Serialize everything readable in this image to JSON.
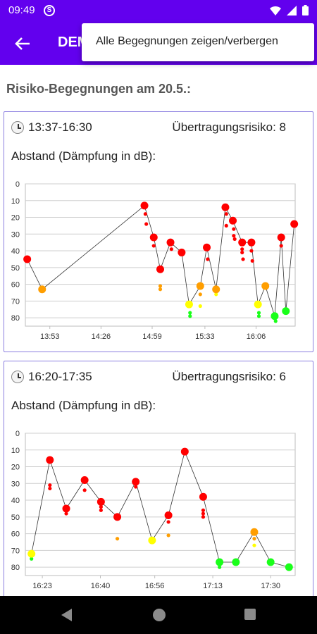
{
  "status": {
    "time": "09:49",
    "app_icon": "signal-app-icon",
    "icons": [
      "wifi-icon",
      "signal-icon",
      "battery-icon"
    ]
  },
  "app_bar": {
    "title": "DEM",
    "back_icon": "arrow-back-icon"
  },
  "menu": {
    "items": [
      {
        "label": "Alle Begegnungen zeigen/verbergen"
      }
    ]
  },
  "heading": "Risiko-Begegnungen am 20.5.:",
  "colors": {
    "primary": "#6200ee",
    "red": "#ff0000",
    "orange": "#ff9e00",
    "yellow": "#ffff00",
    "green": "#1aff1a",
    "card_border": "#8c7fe0"
  },
  "cards": [
    {
      "time_range": "13:37-16:30",
      "risk_label": "Übertragungsrisiko: 8",
      "sublabel": "Abstand (Dämpfung in dB):"
    },
    {
      "time_range": "16:20-17:35",
      "risk_label": "Übertragungsrisiko: 6",
      "sublabel": "Abstand (Dämpfung in dB):"
    }
  ],
  "chart_data": [
    {
      "type": "scatter",
      "ylabel": "",
      "ylim": [
        0,
        85
      ],
      "yticks": [
        0,
        10,
        20,
        30,
        40,
        50,
        60,
        70,
        80
      ],
      "xlim": [
        13.62,
        16.52
      ],
      "xticks": [
        {
          "value": 13.883,
          "label": "13:53"
        },
        {
          "value": 14.433,
          "label": "14:26"
        },
        {
          "value": 14.983,
          "label": "14:59"
        },
        {
          "value": 15.55,
          "label": "15:33"
        },
        {
          "value": 16.1,
          "label": "16:06"
        }
      ],
      "grid": true,
      "line": [
        {
          "x": 13.64,
          "y": 45
        },
        {
          "x": 13.8,
          "y": 63
        },
        {
          "x": 14.9,
          "y": 13
        },
        {
          "x": 15.0,
          "y": 32
        },
        {
          "x": 15.07,
          "y": 51
        },
        {
          "x": 15.18,
          "y": 35
        },
        {
          "x": 15.3,
          "y": 41
        },
        {
          "x": 15.38,
          "y": 72
        },
        {
          "x": 15.5,
          "y": 61
        },
        {
          "x": 15.57,
          "y": 38
        },
        {
          "x": 15.67,
          "y": 63
        },
        {
          "x": 15.77,
          "y": 14
        },
        {
          "x": 15.85,
          "y": 22
        },
        {
          "x": 15.95,
          "y": 35
        },
        {
          "x": 16.05,
          "y": 35
        },
        {
          "x": 16.12,
          "y": 72
        },
        {
          "x": 16.2,
          "y": 61
        },
        {
          "x": 16.3,
          "y": 79
        },
        {
          "x": 16.37,
          "y": 32
        },
        {
          "x": 16.42,
          "y": 76
        },
        {
          "x": 16.51,
          "y": 24
        }
      ],
      "points": [
        {
          "x": 13.64,
          "y": 45,
          "risk": "red",
          "size": "large"
        },
        {
          "x": 13.8,
          "y": 63,
          "risk": "orange",
          "size": "large"
        },
        {
          "x": 14.9,
          "y": 13,
          "risk": "red",
          "size": "large"
        },
        {
          "x": 14.91,
          "y": 18,
          "risk": "red",
          "size": "small"
        },
        {
          "x": 14.92,
          "y": 24,
          "risk": "red",
          "size": "small"
        },
        {
          "x": 15.0,
          "y": 32,
          "risk": "red",
          "size": "large"
        },
        {
          "x": 15.0,
          "y": 37,
          "risk": "red",
          "size": "small"
        },
        {
          "x": 15.07,
          "y": 51,
          "risk": "red",
          "size": "large"
        },
        {
          "x": 15.07,
          "y": 61,
          "risk": "orange",
          "size": "small"
        },
        {
          "x": 15.07,
          "y": 63,
          "risk": "orange",
          "size": "small"
        },
        {
          "x": 15.18,
          "y": 35,
          "risk": "red",
          "size": "large"
        },
        {
          "x": 15.19,
          "y": 39,
          "risk": "red",
          "size": "small"
        },
        {
          "x": 15.3,
          "y": 41,
          "risk": "red",
          "size": "large"
        },
        {
          "x": 15.38,
          "y": 72,
          "risk": "yellow",
          "size": "large"
        },
        {
          "x": 15.39,
          "y": 77,
          "risk": "green",
          "size": "small"
        },
        {
          "x": 15.39,
          "y": 79,
          "risk": "green",
          "size": "small"
        },
        {
          "x": 15.5,
          "y": 61,
          "risk": "orange",
          "size": "large"
        },
        {
          "x": 15.5,
          "y": 66,
          "risk": "orange",
          "size": "small"
        },
        {
          "x": 15.5,
          "y": 73,
          "risk": "yellow",
          "size": "small"
        },
        {
          "x": 15.57,
          "y": 38,
          "risk": "red",
          "size": "large"
        },
        {
          "x": 15.58,
          "y": 45,
          "risk": "red",
          "size": "small"
        },
        {
          "x": 15.67,
          "y": 63,
          "risk": "orange",
          "size": "large"
        },
        {
          "x": 15.67,
          "y": 66,
          "risk": "yellow",
          "size": "small"
        },
        {
          "x": 15.77,
          "y": 14,
          "risk": "red",
          "size": "large"
        },
        {
          "x": 15.78,
          "y": 18,
          "risk": "red",
          "size": "small"
        },
        {
          "x": 15.78,
          "y": 25,
          "risk": "red",
          "size": "small"
        },
        {
          "x": 15.85,
          "y": 22,
          "risk": "red",
          "size": "large"
        },
        {
          "x": 15.86,
          "y": 27,
          "risk": "red",
          "size": "small"
        },
        {
          "x": 15.86,
          "y": 31,
          "risk": "red",
          "size": "small"
        },
        {
          "x": 15.87,
          "y": 33,
          "risk": "red",
          "size": "small"
        },
        {
          "x": 15.95,
          "y": 35,
          "risk": "red",
          "size": "large"
        },
        {
          "x": 15.95,
          "y": 39,
          "risk": "red",
          "size": "small"
        },
        {
          "x": 15.95,
          "y": 41,
          "risk": "red",
          "size": "small"
        },
        {
          "x": 15.96,
          "y": 45,
          "risk": "red",
          "size": "small"
        },
        {
          "x": 16.05,
          "y": 35,
          "risk": "red",
          "size": "large"
        },
        {
          "x": 16.05,
          "y": 40,
          "risk": "red",
          "size": "small"
        },
        {
          "x": 16.06,
          "y": 46,
          "risk": "red",
          "size": "small"
        },
        {
          "x": 16.12,
          "y": 72,
          "risk": "yellow",
          "size": "large"
        },
        {
          "x": 16.13,
          "y": 77,
          "risk": "green",
          "size": "small"
        },
        {
          "x": 16.13,
          "y": 79,
          "risk": "green",
          "size": "small"
        },
        {
          "x": 16.2,
          "y": 61,
          "risk": "orange",
          "size": "large"
        },
        {
          "x": 16.3,
          "y": 79,
          "risk": "green",
          "size": "large"
        },
        {
          "x": 16.31,
          "y": 82,
          "risk": "green",
          "size": "small"
        },
        {
          "x": 16.37,
          "y": 32,
          "risk": "red",
          "size": "large"
        },
        {
          "x": 16.37,
          "y": 37,
          "risk": "red",
          "size": "small"
        },
        {
          "x": 16.42,
          "y": 76,
          "risk": "green",
          "size": "large"
        },
        {
          "x": 16.51,
          "y": 24,
          "risk": "red",
          "size": "large"
        }
      ]
    },
    {
      "type": "scatter",
      "ylabel": "",
      "ylim": [
        0,
        85
      ],
      "yticks": [
        0,
        10,
        20,
        30,
        40,
        50,
        60,
        70,
        80
      ],
      "xlim": [
        16.3,
        17.62
      ],
      "xticks": [
        {
          "value": 16.383,
          "label": "16:23"
        },
        {
          "value": 16.667,
          "label": "16:40"
        },
        {
          "value": 16.933,
          "label": "16:56"
        },
        {
          "value": 17.217,
          "label": "17:13"
        },
        {
          "value": 17.5,
          "label": "17:30"
        }
      ],
      "grid": true,
      "line": [
        {
          "x": 16.33,
          "y": 72
        },
        {
          "x": 16.42,
          "y": 16
        },
        {
          "x": 16.5,
          "y": 45
        },
        {
          "x": 16.59,
          "y": 28
        },
        {
          "x": 16.67,
          "y": 41
        },
        {
          "x": 16.75,
          "y": 50
        },
        {
          "x": 16.84,
          "y": 29
        },
        {
          "x": 16.92,
          "y": 64
        },
        {
          "x": 17.0,
          "y": 49
        },
        {
          "x": 17.08,
          "y": 11
        },
        {
          "x": 17.17,
          "y": 38
        },
        {
          "x": 17.25,
          "y": 77
        },
        {
          "x": 17.33,
          "y": 77
        },
        {
          "x": 17.42,
          "y": 59
        },
        {
          "x": 17.5,
          "y": 77
        },
        {
          "x": 17.59,
          "y": 80
        }
      ],
      "points": [
        {
          "x": 16.33,
          "y": 72,
          "risk": "yellow",
          "size": "large"
        },
        {
          "x": 16.33,
          "y": 75,
          "risk": "green",
          "size": "small"
        },
        {
          "x": 16.42,
          "y": 16,
          "risk": "red",
          "size": "large"
        },
        {
          "x": 16.42,
          "y": 31,
          "risk": "red",
          "size": "small"
        },
        {
          "x": 16.42,
          "y": 33,
          "risk": "red",
          "size": "small"
        },
        {
          "x": 16.5,
          "y": 45,
          "risk": "red",
          "size": "large"
        },
        {
          "x": 16.5,
          "y": 48,
          "risk": "red",
          "size": "small"
        },
        {
          "x": 16.59,
          "y": 28,
          "risk": "red",
          "size": "large"
        },
        {
          "x": 16.59,
          "y": 34,
          "risk": "red",
          "size": "small"
        },
        {
          "x": 16.67,
          "y": 41,
          "risk": "red",
          "size": "large"
        },
        {
          "x": 16.67,
          "y": 44,
          "risk": "red",
          "size": "small"
        },
        {
          "x": 16.67,
          "y": 46,
          "risk": "red",
          "size": "small"
        },
        {
          "x": 16.75,
          "y": 50,
          "risk": "red",
          "size": "large"
        },
        {
          "x": 16.75,
          "y": 63,
          "risk": "orange",
          "size": "small"
        },
        {
          "x": 16.84,
          "y": 29,
          "risk": "red",
          "size": "large"
        },
        {
          "x": 16.84,
          "y": 32,
          "risk": "red",
          "size": "small"
        },
        {
          "x": 16.92,
          "y": 64,
          "risk": "yellow",
          "size": "large"
        },
        {
          "x": 17.0,
          "y": 49,
          "risk": "red",
          "size": "large"
        },
        {
          "x": 17.0,
          "y": 53,
          "risk": "red",
          "size": "small"
        },
        {
          "x": 17.0,
          "y": 61,
          "risk": "orange",
          "size": "small"
        },
        {
          "x": 17.08,
          "y": 11,
          "risk": "red",
          "size": "large"
        },
        {
          "x": 17.17,
          "y": 38,
          "risk": "red",
          "size": "large"
        },
        {
          "x": 17.17,
          "y": 46,
          "risk": "red",
          "size": "small"
        },
        {
          "x": 17.17,
          "y": 48,
          "risk": "red",
          "size": "small"
        },
        {
          "x": 17.17,
          "y": 50,
          "risk": "red",
          "size": "small"
        },
        {
          "x": 17.25,
          "y": 77,
          "risk": "green",
          "size": "large"
        },
        {
          "x": 17.25,
          "y": 80,
          "risk": "green",
          "size": "small"
        },
        {
          "x": 17.33,
          "y": 77,
          "risk": "green",
          "size": "large"
        },
        {
          "x": 17.42,
          "y": 59,
          "risk": "orange",
          "size": "large"
        },
        {
          "x": 17.42,
          "y": 63,
          "risk": "orange",
          "size": "small"
        },
        {
          "x": 17.42,
          "y": 67,
          "risk": "yellow",
          "size": "small"
        },
        {
          "x": 17.5,
          "y": 77,
          "risk": "green",
          "size": "large"
        },
        {
          "x": 17.59,
          "y": 80,
          "risk": "green",
          "size": "large"
        }
      ]
    }
  ]
}
